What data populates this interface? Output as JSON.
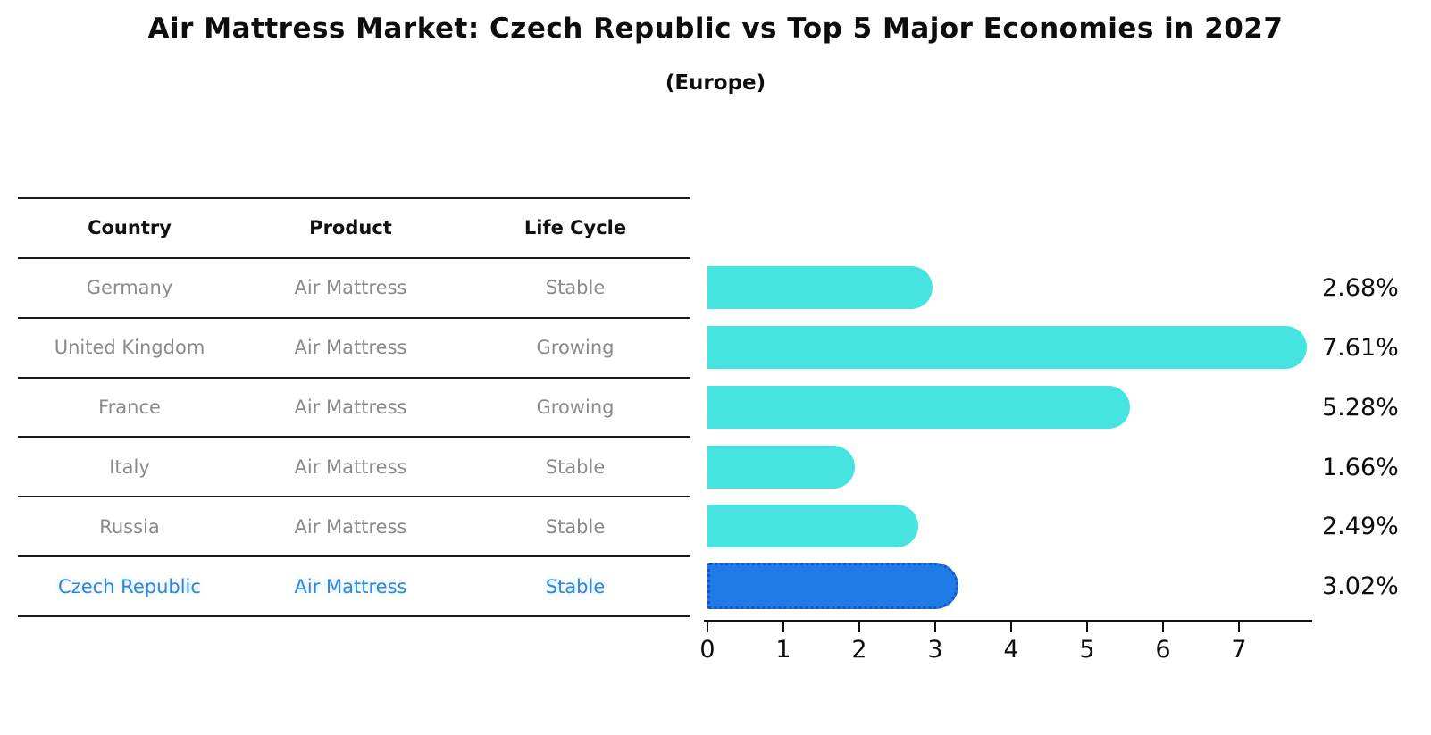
{
  "title": "Air Mattress Market: Czech Republic vs Top 5 Major Economies in 2027",
  "subtitle": "(Europe)",
  "table": {
    "headers": [
      "Country",
      "Product",
      "Life Cycle"
    ],
    "rows": [
      {
        "country": "Germany",
        "product": "Air Mattress",
        "life_cycle": "Stable"
      },
      {
        "country": "United Kingdom",
        "product": "Air Mattress",
        "life_cycle": "Growing"
      },
      {
        "country": "France",
        "product": "Air Mattress",
        "life_cycle": "Growing"
      },
      {
        "country": "Italy",
        "product": "Air Mattress",
        "life_cycle": "Stable"
      },
      {
        "country": "Russia",
        "product": "Air Mattress",
        "life_cycle": "Stable"
      },
      {
        "country": "Czech Republic",
        "product": "Air Mattress",
        "life_cycle": "Stable"
      }
    ]
  },
  "chart_data": {
    "type": "bar",
    "orientation": "horizontal",
    "title": "Air Mattress Market: Czech Republic vs Top 5 Major Economies in 2027",
    "subtitle": "(Europe)",
    "categories": [
      "Germany",
      "United Kingdom",
      "France",
      "Italy",
      "Russia",
      "Czech Republic"
    ],
    "values": [
      2.68,
      7.61,
      5.28,
      1.66,
      2.49,
      3.02
    ],
    "labels": [
      "2.68%",
      "7.61%",
      "5.28%",
      "1.66%",
      "2.49%",
      "3.02%"
    ],
    "xlabel": "",
    "ylabel": "",
    "xlim": [
      0,
      8
    ],
    "xticks": [
      0,
      1,
      2,
      3,
      4,
      5,
      6,
      7
    ],
    "grid": false,
    "legend": false,
    "highlight_index": 5
  },
  "axis": {
    "ticks": [
      "0",
      "1",
      "2",
      "3",
      "4",
      "5",
      "6",
      "7"
    ]
  },
  "colors": {
    "bar": "#45E4E0",
    "highlight_bar": "#1E7BE8",
    "highlight_border": "#1A52C0",
    "highlight_text": "#2E86D9",
    "cell_text": "#8a8a8a",
    "axis": "#111111"
  }
}
